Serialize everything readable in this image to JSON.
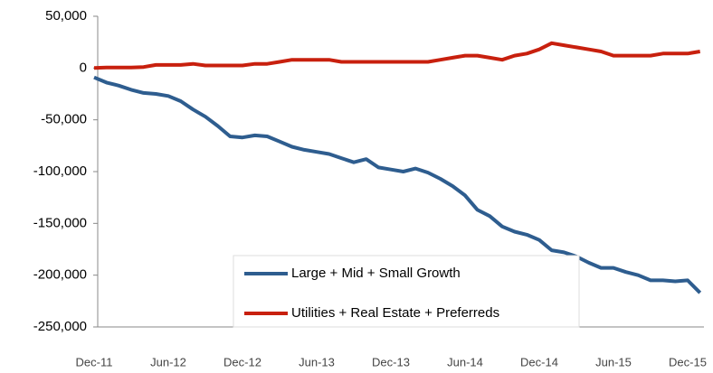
{
  "chart_data": {
    "type": "line",
    "categories": [
      "Dec-11",
      null,
      null,
      null,
      null,
      null,
      "Jun-12",
      null,
      null,
      null,
      null,
      null,
      "Dec-12",
      null,
      null,
      null,
      null,
      null,
      "Jun-13",
      null,
      null,
      null,
      null,
      null,
      "Dec-13",
      null,
      null,
      null,
      null,
      null,
      "Jun-14",
      null,
      null,
      null,
      null,
      null,
      "Dec-14",
      null,
      null,
      null,
      null,
      null,
      "Jun-15",
      null,
      null,
      null,
      null,
      null,
      "Dec-15",
      null
    ],
    "series": [
      {
        "name": "Large + Mid + Small Growth",
        "color": "#2e5d8f",
        "values": [
          -9000,
          -14000,
          -17000,
          -21000,
          -24000,
          -25000,
          -27000,
          -32000,
          -40000,
          -47000,
          -56000,
          -66000,
          -67000,
          -65000,
          -66000,
          -71000,
          -76000,
          -79000,
          -81000,
          -83000,
          -87000,
          -91000,
          -88000,
          -96000,
          -98000,
          -100000,
          -97000,
          -101000,
          -107000,
          -114000,
          -123000,
          -137000,
          -143000,
          -153000,
          -158000,
          -161000,
          -166000,
          -176000,
          -178000,
          -182000,
          -188000,
          -193000,
          -193000,
          -197000,
          -200000,
          -205000,
          -205000,
          -206000,
          -205000,
          -217000
        ]
      },
      {
        "name": "Utilities + Real Estate + Preferreds",
        "color": "#c8200e",
        "values": [
          0,
          500,
          500,
          500,
          1000,
          3000,
          3000,
          3000,
          4000,
          2500,
          2500,
          2500,
          2500,
          4000,
          4000,
          6000,
          8000,
          8000,
          8000,
          8000,
          6000,
          6000,
          6000,
          6000,
          6000,
          6000,
          6000,
          6000,
          8000,
          10000,
          12000,
          12000,
          10000,
          8000,
          12000,
          14000,
          18000,
          24000,
          22000,
          20000,
          18000,
          16000,
          12000,
          12000,
          12000,
          12000,
          14000,
          14000,
          14000,
          16000
        ]
      }
    ],
    "ylim": [
      -250000,
      50000
    ],
    "yticks": [
      {
        "value": 50000,
        "label": "50,000"
      },
      0,
      {
        "value": -50000,
        "label": "-50,000"
      },
      {
        "value": -100000,
        "label": "-100,000"
      },
      {
        "value": -150000,
        "label": "-150,000"
      },
      {
        "value": -200000,
        "label": "-200,000"
      },
      {
        "value": -250000,
        "label": "-250,000"
      }
    ],
    "legend": "lower-center"
  }
}
